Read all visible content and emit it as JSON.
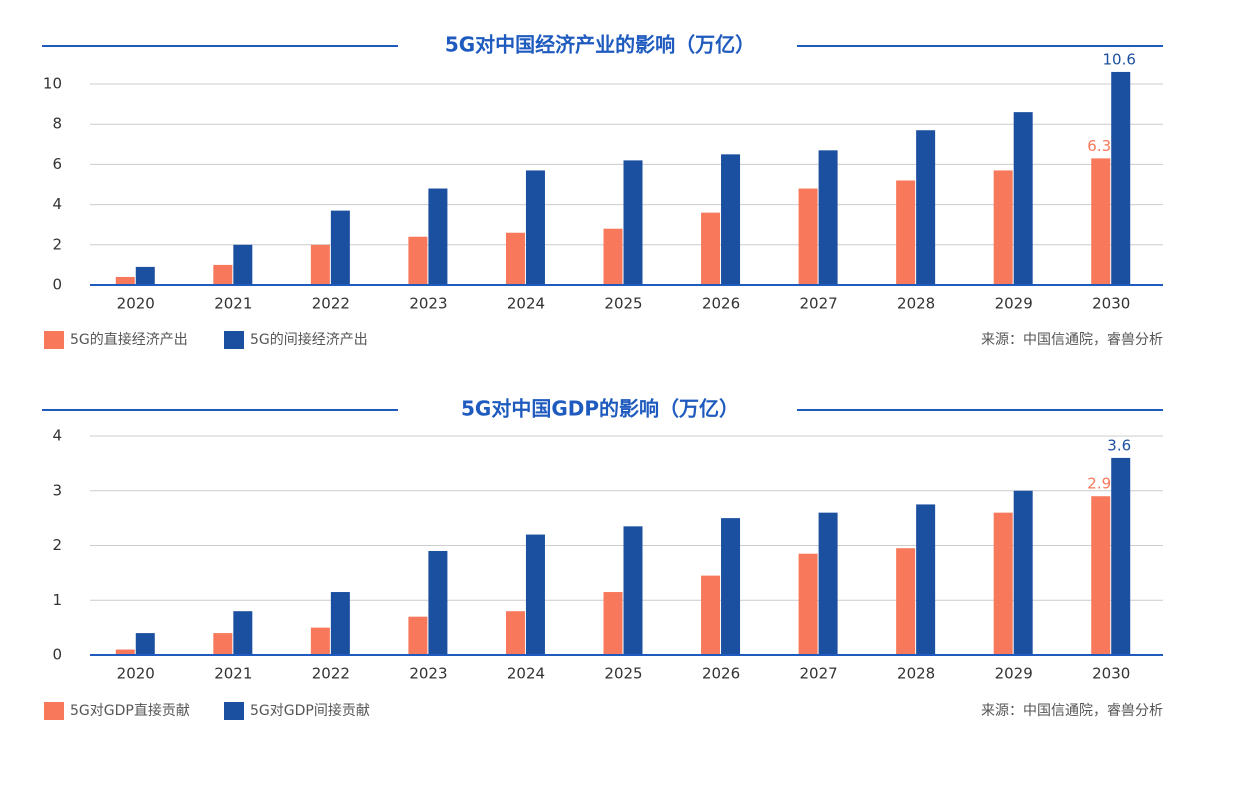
{
  "chart_data": [
    {
      "type": "bar",
      "title": "5G对中国经济产业的影响（万亿）",
      "categories": [
        "2020",
        "2021",
        "2022",
        "2023",
        "2024",
        "2025",
        "2026",
        "2027",
        "2028",
        "2029",
        "2030"
      ],
      "series": [
        {
          "name": "5G的直接经济产出",
          "color": "#f7785a",
          "values": [
            0.4,
            1.0,
            2.0,
            2.4,
            2.6,
            2.8,
            3.6,
            4.8,
            5.2,
            5.7,
            6.3
          ],
          "value_labels": [
            null,
            null,
            null,
            null,
            null,
            null,
            null,
            null,
            null,
            null,
            "6.3"
          ]
        },
        {
          "name": "5G的间接经济产出",
          "color": "#1b4f9f",
          "values": [
            0.9,
            2.0,
            3.7,
            4.8,
            5.7,
            6.2,
            6.5,
            6.7,
            7.7,
            8.6,
            10.6
          ],
          "value_labels": [
            null,
            null,
            null,
            null,
            null,
            null,
            null,
            null,
            null,
            null,
            "10.6"
          ]
        }
      ],
      "ylim": [
        0,
        11
      ],
      "yticks": [
        0,
        2,
        4,
        6,
        8,
        10
      ],
      "grid": true,
      "source": "来源：中国信通院，睿兽分析"
    },
    {
      "type": "bar",
      "title": "5G对中国GDP的影响（万亿）",
      "categories": [
        "2020",
        "2021",
        "2022",
        "2023",
        "2024",
        "2025",
        "2026",
        "2027",
        "2028",
        "2029",
        "2030"
      ],
      "series": [
        {
          "name": "5G对GDP直接贡献",
          "color": "#f7785a",
          "values": [
            0.1,
            0.4,
            0.5,
            0.7,
            0.8,
            1.15,
            1.45,
            1.85,
            1.95,
            2.6,
            2.9
          ],
          "value_labels": [
            null,
            null,
            null,
            null,
            null,
            null,
            null,
            null,
            null,
            null,
            "2.9"
          ]
        },
        {
          "name": "5G对GDP间接贡献",
          "color": "#1b4f9f",
          "values": [
            0.4,
            0.8,
            1.15,
            1.9,
            2.2,
            2.35,
            2.5,
            2.6,
            2.75,
            3.0,
            3.6
          ],
          "value_labels": [
            null,
            null,
            null,
            null,
            null,
            null,
            null,
            null,
            null,
            null,
            "3.6"
          ]
        }
      ],
      "ylim": [
        0,
        4.3
      ],
      "yticks": [
        0,
        1,
        2,
        3,
        4
      ],
      "grid": true,
      "source": "来源：中国信通院，睿兽分析"
    }
  ]
}
